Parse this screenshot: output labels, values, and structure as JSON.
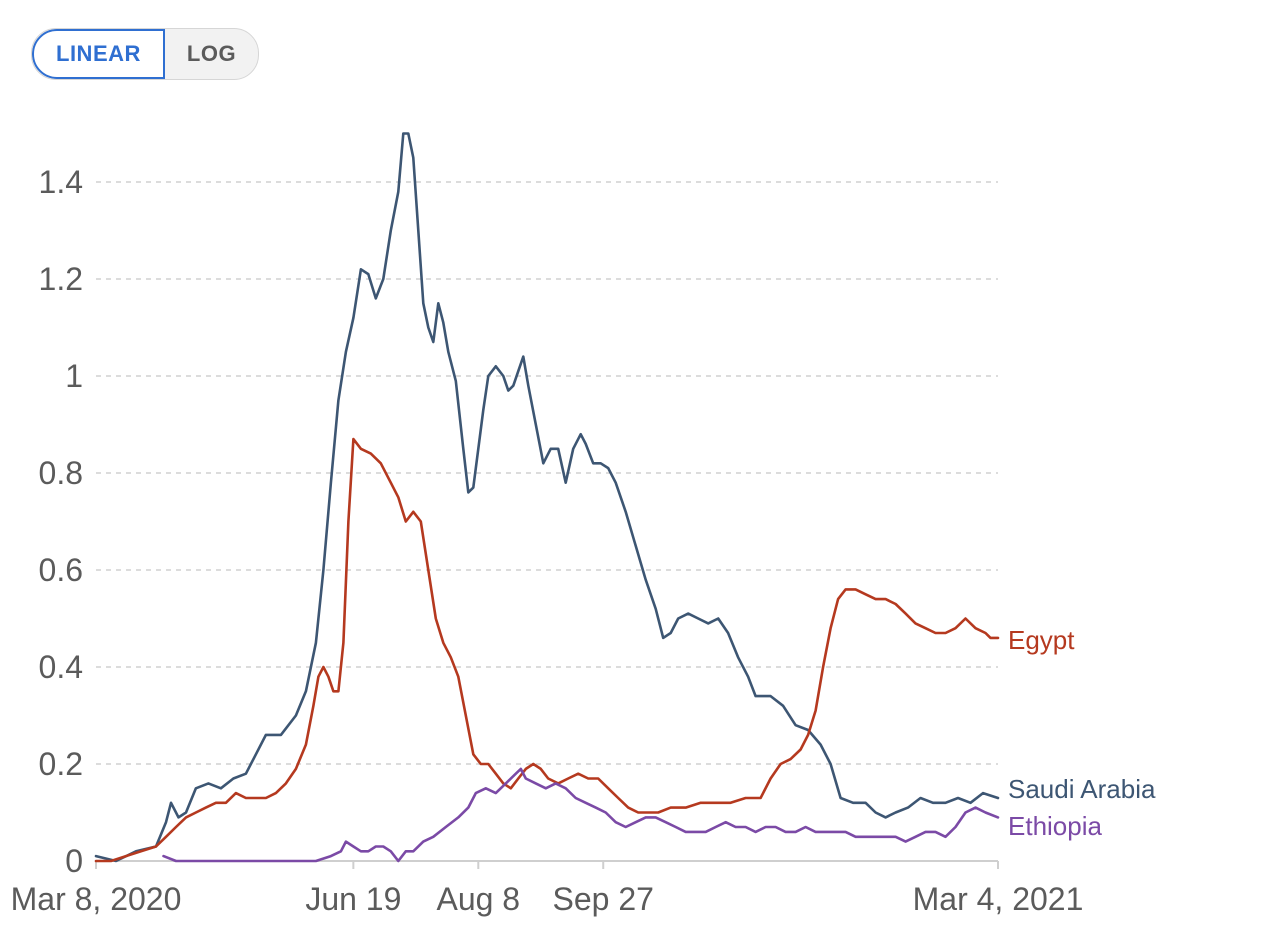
{
  "controls": {
    "linear_label": "LINEAR",
    "log_label": "LOG",
    "active": "LINEAR"
  },
  "chart_data": {
    "type": "line",
    "title": "",
    "xlabel": "",
    "ylabel": "",
    "x_unit": "days since Mar 8, 2020",
    "xlim": [
      0,
      361
    ],
    "ylim": [
      0,
      1.5
    ],
    "grid": true,
    "y_ticks": [
      {
        "value": 0,
        "label": "0"
      },
      {
        "value": 0.2,
        "label": "0.2"
      },
      {
        "value": 0.4,
        "label": "0.4"
      },
      {
        "value": 0.6,
        "label": "0.6"
      },
      {
        "value": 0.8,
        "label": "0.8"
      },
      {
        "value": 1.0,
        "label": "1"
      },
      {
        "value": 1.2,
        "label": "1.2"
      },
      {
        "value": 1.4,
        "label": "1.4"
      }
    ],
    "x_ticks": [
      {
        "value": 0,
        "label": "Mar 8, 2020"
      },
      {
        "value": 103,
        "label": "Jun 19"
      },
      {
        "value": 153,
        "label": "Aug 8"
      },
      {
        "value": 203,
        "label": "Sep 27"
      },
      {
        "value": 361,
        "label": "Mar 4, 2021"
      }
    ],
    "series": [
      {
        "name": "Saudi Arabia",
        "color": "#3d5673",
        "points": [
          [
            0,
            0.01
          ],
          [
            8,
            0.0
          ],
          [
            16,
            0.02
          ],
          [
            24,
            0.03
          ],
          [
            28,
            0.08
          ],
          [
            30,
            0.12
          ],
          [
            33,
            0.09
          ],
          [
            36,
            0.1
          ],
          [
            40,
            0.15
          ],
          [
            45,
            0.16
          ],
          [
            50,
            0.15
          ],
          [
            55,
            0.17
          ],
          [
            60,
            0.18
          ],
          [
            64,
            0.22
          ],
          [
            68,
            0.26
          ],
          [
            74,
            0.26
          ],
          [
            80,
            0.3
          ],
          [
            84,
            0.35
          ],
          [
            88,
            0.45
          ],
          [
            91,
            0.6
          ],
          [
            94,
            0.78
          ],
          [
            97,
            0.95
          ],
          [
            100,
            1.05
          ],
          [
            103,
            1.12
          ],
          [
            106,
            1.22
          ],
          [
            109,
            1.21
          ],
          [
            112,
            1.16
          ],
          [
            115,
            1.2
          ],
          [
            118,
            1.3
          ],
          [
            121,
            1.38
          ],
          [
            123,
            1.5
          ],
          [
            125,
            1.5
          ],
          [
            127,
            1.45
          ],
          [
            129,
            1.3
          ],
          [
            131,
            1.15
          ],
          [
            133,
            1.1
          ],
          [
            135,
            1.07
          ],
          [
            137,
            1.15
          ],
          [
            139,
            1.11
          ],
          [
            141,
            1.05
          ],
          [
            144,
            0.99
          ],
          [
            147,
            0.85
          ],
          [
            149,
            0.76
          ],
          [
            151,
            0.77
          ],
          [
            153,
            0.85
          ],
          [
            155,
            0.93
          ],
          [
            157,
            1.0
          ],
          [
            160,
            1.02
          ],
          [
            163,
            1.0
          ],
          [
            165,
            0.97
          ],
          [
            167,
            0.98
          ],
          [
            169,
            1.01
          ],
          [
            171,
            1.04
          ],
          [
            173,
            0.98
          ],
          [
            176,
            0.9
          ],
          [
            179,
            0.82
          ],
          [
            182,
            0.85
          ],
          [
            185,
            0.85
          ],
          [
            188,
            0.78
          ],
          [
            191,
            0.85
          ],
          [
            194,
            0.88
          ],
          [
            196,
            0.86
          ],
          [
            199,
            0.82
          ],
          [
            202,
            0.82
          ],
          [
            205,
            0.81
          ],
          [
            208,
            0.78
          ],
          [
            212,
            0.72
          ],
          [
            216,
            0.65
          ],
          [
            220,
            0.58
          ],
          [
            224,
            0.52
          ],
          [
            227,
            0.46
          ],
          [
            230,
            0.47
          ],
          [
            233,
            0.5
          ],
          [
            237,
            0.51
          ],
          [
            241,
            0.5
          ],
          [
            245,
            0.49
          ],
          [
            249,
            0.5
          ],
          [
            253,
            0.47
          ],
          [
            257,
            0.42
          ],
          [
            261,
            0.38
          ],
          [
            264,
            0.34
          ],
          [
            270,
            0.34
          ],
          [
            275,
            0.32
          ],
          [
            280,
            0.28
          ],
          [
            285,
            0.27
          ],
          [
            290,
            0.24
          ],
          [
            294,
            0.2
          ],
          [
            298,
            0.13
          ],
          [
            303,
            0.12
          ],
          [
            308,
            0.12
          ],
          [
            312,
            0.1
          ],
          [
            316,
            0.09
          ],
          [
            320,
            0.1
          ],
          [
            325,
            0.11
          ],
          [
            330,
            0.13
          ],
          [
            335,
            0.12
          ],
          [
            340,
            0.12
          ],
          [
            345,
            0.13
          ],
          [
            350,
            0.12
          ],
          [
            355,
            0.14
          ],
          [
            361,
            0.13
          ]
        ]
      },
      {
        "name": "Egypt",
        "color": "#b5391f",
        "points": [
          [
            0,
            0.0
          ],
          [
            6,
            0.0
          ],
          [
            12,
            0.01
          ],
          [
            18,
            0.02
          ],
          [
            24,
            0.03
          ],
          [
            28,
            0.05
          ],
          [
            32,
            0.07
          ],
          [
            36,
            0.09
          ],
          [
            40,
            0.1
          ],
          [
            44,
            0.11
          ],
          [
            48,
            0.12
          ],
          [
            52,
            0.12
          ],
          [
            56,
            0.14
          ],
          [
            60,
            0.13
          ],
          [
            64,
            0.13
          ],
          [
            68,
            0.13
          ],
          [
            72,
            0.14
          ],
          [
            76,
            0.16
          ],
          [
            80,
            0.19
          ],
          [
            84,
            0.24
          ],
          [
            87,
            0.32
          ],
          [
            89,
            0.38
          ],
          [
            91,
            0.4
          ],
          [
            93,
            0.38
          ],
          [
            95,
            0.35
          ],
          [
            97,
            0.35
          ],
          [
            99,
            0.45
          ],
          [
            101,
            0.7
          ],
          [
            103,
            0.87
          ],
          [
            106,
            0.85
          ],
          [
            110,
            0.84
          ],
          [
            114,
            0.82
          ],
          [
            118,
            0.78
          ],
          [
            121,
            0.75
          ],
          [
            124,
            0.7
          ],
          [
            127,
            0.72
          ],
          [
            130,
            0.7
          ],
          [
            133,
            0.6
          ],
          [
            136,
            0.5
          ],
          [
            139,
            0.45
          ],
          [
            142,
            0.42
          ],
          [
            145,
            0.38
          ],
          [
            148,
            0.3
          ],
          [
            151,
            0.22
          ],
          [
            154,
            0.2
          ],
          [
            157,
            0.2
          ],
          [
            160,
            0.18
          ],
          [
            163,
            0.16
          ],
          [
            166,
            0.15
          ],
          [
            169,
            0.17
          ],
          [
            172,
            0.19
          ],
          [
            175,
            0.2
          ],
          [
            178,
            0.19
          ],
          [
            181,
            0.17
          ],
          [
            185,
            0.16
          ],
          [
            189,
            0.17
          ],
          [
            193,
            0.18
          ],
          [
            197,
            0.17
          ],
          [
            201,
            0.17
          ],
          [
            205,
            0.15
          ],
          [
            209,
            0.13
          ],
          [
            213,
            0.11
          ],
          [
            217,
            0.1
          ],
          [
            221,
            0.1
          ],
          [
            225,
            0.1
          ],
          [
            230,
            0.11
          ],
          [
            236,
            0.11
          ],
          [
            242,
            0.12
          ],
          [
            248,
            0.12
          ],
          [
            254,
            0.12
          ],
          [
            260,
            0.13
          ],
          [
            266,
            0.13
          ],
          [
            270,
            0.17
          ],
          [
            274,
            0.2
          ],
          [
            278,
            0.21
          ],
          [
            282,
            0.23
          ],
          [
            285,
            0.26
          ],
          [
            288,
            0.31
          ],
          [
            291,
            0.4
          ],
          [
            294,
            0.48
          ],
          [
            297,
            0.54
          ],
          [
            300,
            0.56
          ],
          [
            304,
            0.56
          ],
          [
            308,
            0.55
          ],
          [
            312,
            0.54
          ],
          [
            316,
            0.54
          ],
          [
            320,
            0.53
          ],
          [
            324,
            0.51
          ],
          [
            328,
            0.49
          ],
          [
            332,
            0.48
          ],
          [
            336,
            0.47
          ],
          [
            340,
            0.47
          ],
          [
            344,
            0.48
          ],
          [
            348,
            0.5
          ],
          [
            352,
            0.48
          ],
          [
            356,
            0.47
          ],
          [
            358,
            0.46
          ],
          [
            361,
            0.46
          ]
        ]
      },
      {
        "name": "Ethiopia",
        "color": "#7b4aa6",
        "points": [
          [
            27,
            0.01
          ],
          [
            32,
            0.0
          ],
          [
            36,
            0.0
          ],
          [
            45,
            0.0
          ],
          [
            60,
            0.0
          ],
          [
            75,
            0.0
          ],
          [
            82,
            0.0
          ],
          [
            88,
            0.0
          ],
          [
            94,
            0.01
          ],
          [
            98,
            0.02
          ],
          [
            100,
            0.04
          ],
          [
            103,
            0.03
          ],
          [
            106,
            0.02
          ],
          [
            109,
            0.02
          ],
          [
            112,
            0.03
          ],
          [
            115,
            0.03
          ],
          [
            118,
            0.02
          ],
          [
            121,
            0.0
          ],
          [
            124,
            0.02
          ],
          [
            127,
            0.02
          ],
          [
            131,
            0.04
          ],
          [
            135,
            0.05
          ],
          [
            140,
            0.07
          ],
          [
            145,
            0.09
          ],
          [
            149,
            0.11
          ],
          [
            152,
            0.14
          ],
          [
            156,
            0.15
          ],
          [
            160,
            0.14
          ],
          [
            164,
            0.16
          ],
          [
            168,
            0.18
          ],
          [
            170,
            0.19
          ],
          [
            172,
            0.17
          ],
          [
            176,
            0.16
          ],
          [
            180,
            0.15
          ],
          [
            184,
            0.16
          ],
          [
            188,
            0.15
          ],
          [
            192,
            0.13
          ],
          [
            196,
            0.12
          ],
          [
            200,
            0.11
          ],
          [
            204,
            0.1
          ],
          [
            208,
            0.08
          ],
          [
            212,
            0.07
          ],
          [
            216,
            0.08
          ],
          [
            220,
            0.09
          ],
          [
            224,
            0.09
          ],
          [
            228,
            0.08
          ],
          [
            232,
            0.07
          ],
          [
            236,
            0.06
          ],
          [
            240,
            0.06
          ],
          [
            244,
            0.06
          ],
          [
            248,
            0.07
          ],
          [
            252,
            0.08
          ],
          [
            256,
            0.07
          ],
          [
            260,
            0.07
          ],
          [
            264,
            0.06
          ],
          [
            268,
            0.07
          ],
          [
            272,
            0.07
          ],
          [
            276,
            0.06
          ],
          [
            280,
            0.06
          ],
          [
            284,
            0.07
          ],
          [
            288,
            0.06
          ],
          [
            292,
            0.06
          ],
          [
            296,
            0.06
          ],
          [
            300,
            0.06
          ],
          [
            304,
            0.05
          ],
          [
            308,
            0.05
          ],
          [
            312,
            0.05
          ],
          [
            316,
            0.05
          ],
          [
            320,
            0.05
          ],
          [
            324,
            0.04
          ],
          [
            328,
            0.05
          ],
          [
            332,
            0.06
          ],
          [
            336,
            0.06
          ],
          [
            340,
            0.05
          ],
          [
            344,
            0.07
          ],
          [
            348,
            0.1
          ],
          [
            352,
            0.11
          ],
          [
            356,
            0.1
          ],
          [
            361,
            0.09
          ]
        ]
      }
    ],
    "legend": [
      {
        "name": "Egypt",
        "color": "#b5391f"
      },
      {
        "name": "Saudi Arabia",
        "color": "#3d5673"
      },
      {
        "name": "Ethiopia",
        "color": "#7b4aa6"
      }
    ],
    "colors": {
      "gridline": "#d0d0d0",
      "axis": "#cfcfcf",
      "tick_text": "#5b5b5b"
    }
  }
}
